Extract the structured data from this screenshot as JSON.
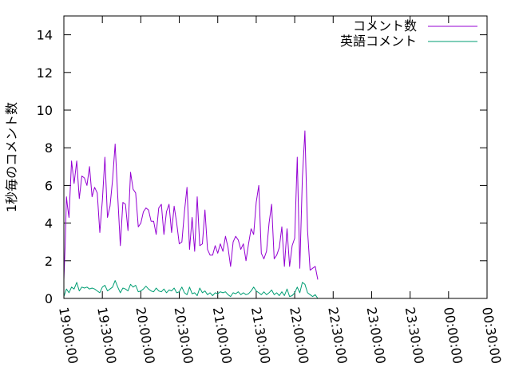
{
  "chart_data": {
    "type": "line",
    "title": "",
    "xlabel": "",
    "ylabel": "1秒毎のコメント数",
    "ylim": [
      0,
      15
    ],
    "xlim": [
      "19:00:00",
      "00:30:00"
    ],
    "yticks": [
      0,
      2,
      4,
      6,
      8,
      10,
      12,
      14
    ],
    "xticks": [
      "19:00:00",
      "19:30:00",
      "20:00:00",
      "20:30:00",
      "21:00:00",
      "21:30:00",
      "22:00:00",
      "22:30:00",
      "23:00:00",
      "23:30:00",
      "00:00:00",
      "00:30:00"
    ],
    "legend": "top-right",
    "grid": false,
    "series": [
      {
        "name": "コメント数",
        "color": "#9400d3",
        "points": [
          [
            "19:00:00",
            1.0
          ],
          [
            "19:01:00",
            2.8
          ],
          [
            "19:02:00",
            5.4
          ],
          [
            "19:03:00",
            4.8
          ],
          [
            "19:04:00",
            4.3
          ],
          [
            "19:06:00",
            7.3
          ],
          [
            "19:08:00",
            6.1
          ],
          [
            "19:10:00",
            7.3
          ],
          [
            "19:12:00",
            5.3
          ],
          [
            "19:14:00",
            6.5
          ],
          [
            "19:16:00",
            6.4
          ],
          [
            "19:18:00",
            6.0
          ],
          [
            "19:20:00",
            7.0
          ],
          [
            "19:22:00",
            5.4
          ],
          [
            "19:24:00",
            5.9
          ],
          [
            "19:26:00",
            5.6
          ],
          [
            "19:28:00",
            3.5
          ],
          [
            "19:30:00",
            5.2
          ],
          [
            "19:32:00",
            7.5
          ],
          [
            "19:34:00",
            4.3
          ],
          [
            "19:36:00",
            4.9
          ],
          [
            "19:38:00",
            6.3
          ],
          [
            "19:40:00",
            8.2
          ],
          [
            "19:42:00",
            5.4
          ],
          [
            "19:44:00",
            2.8
          ],
          [
            "19:46:00",
            5.1
          ],
          [
            "19:48:00",
            5.0
          ],
          [
            "19:50:00",
            3.6
          ],
          [
            "19:52:00",
            6.7
          ],
          [
            "19:54:00",
            5.8
          ],
          [
            "19:56:00",
            5.6
          ],
          [
            "19:58:00",
            3.8
          ],
          [
            "20:00:00",
            4.0
          ],
          [
            "20:02:00",
            4.6
          ],
          [
            "20:04:00",
            4.8
          ],
          [
            "20:06:00",
            4.7
          ],
          [
            "20:08:00",
            4.1
          ],
          [
            "20:10:00",
            4.1
          ],
          [
            "20:12:00",
            3.4
          ],
          [
            "20:14:00",
            4.8
          ],
          [
            "20:16:00",
            5.0
          ],
          [
            "20:18:00",
            3.4
          ],
          [
            "20:20:00",
            4.6
          ],
          [
            "20:22:00",
            5.0
          ],
          [
            "20:24:00",
            3.5
          ],
          [
            "20:26:00",
            4.9
          ],
          [
            "20:28:00",
            4.0
          ],
          [
            "20:30:00",
            2.9
          ],
          [
            "20:32:00",
            3.0
          ],
          [
            "20:34:00",
            4.6
          ],
          [
            "20:36:00",
            5.9
          ],
          [
            "20:38:00",
            2.6
          ],
          [
            "20:40:00",
            4.3
          ],
          [
            "20:42:00",
            2.5
          ],
          [
            "20:44:00",
            5.4
          ],
          [
            "20:46:00",
            2.8
          ],
          [
            "20:48:00",
            2.9
          ],
          [
            "20:50:00",
            4.7
          ],
          [
            "20:52:00",
            2.6
          ],
          [
            "20:54:00",
            2.3
          ],
          [
            "20:56:00",
            2.3
          ],
          [
            "20:58:00",
            2.8
          ],
          [
            "21:00:00",
            2.4
          ],
          [
            "21:02:00",
            2.9
          ],
          [
            "21:04:00",
            2.5
          ],
          [
            "21:06:00",
            3.3
          ],
          [
            "21:08:00",
            2.7
          ],
          [
            "21:10:00",
            1.7
          ],
          [
            "21:12:00",
            3.0
          ],
          [
            "21:14:00",
            3.3
          ],
          [
            "21:16:00",
            3.1
          ],
          [
            "21:18:00",
            2.6
          ],
          [
            "21:20:00",
            2.9
          ],
          [
            "21:22:00",
            2.0
          ],
          [
            "21:24:00",
            2.9
          ],
          [
            "21:26:00",
            3.7
          ],
          [
            "21:28:00",
            3.4
          ],
          [
            "21:30:00",
            5.1
          ],
          [
            "21:32:00",
            6.0
          ],
          [
            "21:34:00",
            2.4
          ],
          [
            "21:36:00",
            2.1
          ],
          [
            "21:38:00",
            2.5
          ],
          [
            "21:40:00",
            4.0
          ],
          [
            "21:42:00",
            5.0
          ],
          [
            "21:44:00",
            2.1
          ],
          [
            "21:46:00",
            2.3
          ],
          [
            "21:48:00",
            2.7
          ],
          [
            "21:50:00",
            3.8
          ],
          [
            "21:52:00",
            1.7
          ],
          [
            "21:54:00",
            3.7
          ],
          [
            "21:56:00",
            1.7
          ],
          [
            "21:58:00",
            2.8
          ],
          [
            "22:00:00",
            3.2
          ],
          [
            "22:02:00",
            7.5
          ],
          [
            "22:04:00",
            1.6
          ],
          [
            "22:06:00",
            6.4
          ],
          [
            "22:08:00",
            8.9
          ],
          [
            "22:10:00",
            3.6
          ],
          [
            "22:12:00",
            1.5
          ],
          [
            "22:14:00",
            1.6
          ],
          [
            "22:16:00",
            1.7
          ],
          [
            "22:18:00",
            1.0
          ]
        ]
      },
      {
        "name": "英語コメント",
        "color": "#009e73",
        "points": [
          [
            "19:00:00",
            0.1
          ],
          [
            "19:02:00",
            0.5
          ],
          [
            "19:04:00",
            0.3
          ],
          [
            "19:06:00",
            0.6
          ],
          [
            "19:08:00",
            0.5
          ],
          [
            "19:10:00",
            0.85
          ],
          [
            "19:12:00",
            0.4
          ],
          [
            "19:14:00",
            0.6
          ],
          [
            "19:16:00",
            0.55
          ],
          [
            "19:18:00",
            0.6
          ],
          [
            "19:20:00",
            0.5
          ],
          [
            "19:22:00",
            0.55
          ],
          [
            "19:24:00",
            0.5
          ],
          [
            "19:26:00",
            0.4
          ],
          [
            "19:28:00",
            0.3
          ],
          [
            "19:30:00",
            0.6
          ],
          [
            "19:32:00",
            0.7
          ],
          [
            "19:34:00",
            0.4
          ],
          [
            "19:36:00",
            0.5
          ],
          [
            "19:38:00",
            0.6
          ],
          [
            "19:40:00",
            0.95
          ],
          [
            "19:42:00",
            0.6
          ],
          [
            "19:44:00",
            0.3
          ],
          [
            "19:46:00",
            0.55
          ],
          [
            "19:48:00",
            0.5
          ],
          [
            "19:50:00",
            0.4
          ],
          [
            "19:52:00",
            0.75
          ],
          [
            "19:54:00",
            0.6
          ],
          [
            "19:56:00",
            0.7
          ],
          [
            "19:58:00",
            0.35
          ],
          [
            "20:00:00",
            0.4
          ],
          [
            "20:02:00",
            0.5
          ],
          [
            "20:04:00",
            0.65
          ],
          [
            "20:06:00",
            0.5
          ],
          [
            "20:08:00",
            0.4
          ],
          [
            "20:10:00",
            0.35
          ],
          [
            "20:12:00",
            0.55
          ],
          [
            "20:14:00",
            0.4
          ],
          [
            "20:16:00",
            0.35
          ],
          [
            "20:18:00",
            0.5
          ],
          [
            "20:20:00",
            0.3
          ],
          [
            "20:22:00",
            0.45
          ],
          [
            "20:24:00",
            0.4
          ],
          [
            "20:26:00",
            0.55
          ],
          [
            "20:28:00",
            0.3
          ],
          [
            "20:30:00",
            0.35
          ],
          [
            "20:32:00",
            0.6
          ],
          [
            "20:34:00",
            0.3
          ],
          [
            "20:36:00",
            0.2
          ],
          [
            "20:38:00",
            0.6
          ],
          [
            "20:40:00",
            0.25
          ],
          [
            "20:42:00",
            0.3
          ],
          [
            "20:44:00",
            0.15
          ],
          [
            "20:46:00",
            0.55
          ],
          [
            "20:48:00",
            0.3
          ],
          [
            "20:50:00",
            0.4
          ],
          [
            "20:52:00",
            0.2
          ],
          [
            "20:54:00",
            0.3
          ],
          [
            "20:56:00",
            0.15
          ],
          [
            "20:58:00",
            0.3
          ],
          [
            "21:00:00",
            0.25
          ],
          [
            "21:02:00",
            0.35
          ],
          [
            "21:04:00",
            0.3
          ],
          [
            "21:06:00",
            0.35
          ],
          [
            "21:08:00",
            0.2
          ],
          [
            "21:10:00",
            0.1
          ],
          [
            "21:12:00",
            0.3
          ],
          [
            "21:14:00",
            0.25
          ],
          [
            "21:16:00",
            0.35
          ],
          [
            "21:18:00",
            0.2
          ],
          [
            "21:20:00",
            0.3
          ],
          [
            "21:22:00",
            0.2
          ],
          [
            "21:24:00",
            0.25
          ],
          [
            "21:26:00",
            0.4
          ],
          [
            "21:28:00",
            0.6
          ],
          [
            "21:30:00",
            0.4
          ],
          [
            "21:32:00",
            0.3
          ],
          [
            "21:34:00",
            0.2
          ],
          [
            "21:36:00",
            0.35
          ],
          [
            "21:38:00",
            0.2
          ],
          [
            "21:40:00",
            0.3
          ],
          [
            "21:42:00",
            0.45
          ],
          [
            "21:44:00",
            0.2
          ],
          [
            "21:46:00",
            0.3
          ],
          [
            "21:48:00",
            0.15
          ],
          [
            "21:50:00",
            0.35
          ],
          [
            "21:52:00",
            0.15
          ],
          [
            "21:54:00",
            0.5
          ],
          [
            "21:56:00",
            0.1
          ],
          [
            "21:58:00",
            0.15
          ],
          [
            "22:00:00",
            0.3
          ],
          [
            "22:02:00",
            0.6
          ],
          [
            "22:04:00",
            0.3
          ],
          [
            "22:06:00",
            0.85
          ],
          [
            "22:08:00",
            0.75
          ],
          [
            "22:10:00",
            0.3
          ],
          [
            "22:12:00",
            0.2
          ],
          [
            "22:14:00",
            0.1
          ],
          [
            "22:16:00",
            0.2
          ],
          [
            "22:18:00",
            0.0
          ]
        ]
      }
    ]
  }
}
